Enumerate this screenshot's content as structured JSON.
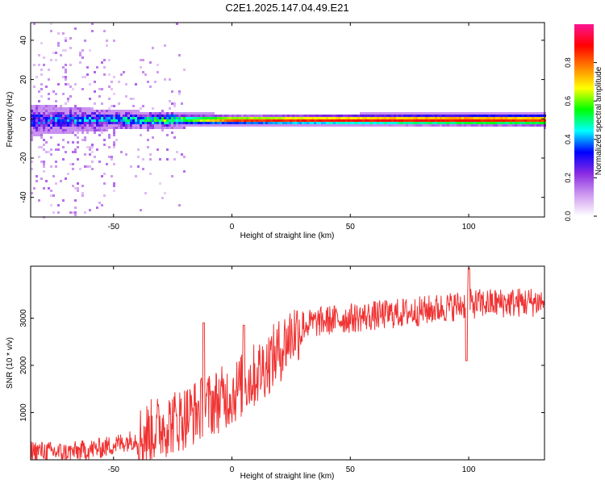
{
  "title": "C2E1.2025.147.04.49.E21",
  "chart_data": [
    {
      "type": "heatmap",
      "xlabel": "Height of straight line (km)",
      "ylabel": "Frequency (Hz)",
      "xlim": [
        -85,
        132
      ],
      "ylim": [
        -50,
        49
      ],
      "xticks": [
        -50,
        0,
        50,
        100
      ],
      "yticks": [
        -40,
        -20,
        0,
        20,
        40
      ],
      "colorbar": {
        "label": "Normalized spectral amplitude",
        "range": [
          0,
          1
        ],
        "ticks": [
          0,
          0.2,
          0.4,
          0.6,
          0.8
        ],
        "tick_labels": [
          "0.0",
          "0.2",
          "0.4",
          "0.6",
          "0.8"
        ],
        "colors": [
          "#ffffff",
          "#cf9bf0",
          "#8a2be2",
          "#0000ff",
          "#00ffff",
          "#00ff00",
          "#ffff00",
          "#ff8000",
          "#ff0000",
          "#ff1493"
        ]
      },
      "band_center_hz": 0,
      "band_halfwidth_hz": [
        {
          "x": -85,
          "value": 8
        },
        {
          "x": -50,
          "value": 5
        },
        {
          "x": -20,
          "value": 4
        },
        {
          "x": 0,
          "value": 3
        },
        {
          "x": 132,
          "value": 4
        }
      ],
      "peak_amplitude": [
        {
          "x": -85,
          "value": 0.25
        },
        {
          "x": -50,
          "value": 0.35
        },
        {
          "x": -20,
          "value": 0.55
        },
        {
          "x": 0,
          "value": 0.85
        },
        {
          "x": 50,
          "value": 0.9
        },
        {
          "x": 100,
          "value": 0.9
        },
        {
          "x": 132,
          "value": 0.85
        }
      ]
    },
    {
      "type": "line",
      "xlabel": "Height of straight line (km)",
      "ylabel": "SNR (10 * v/v)",
      "xlim": [
        -85,
        132
      ],
      "ylim": [
        0,
        4100
      ],
      "xticks": [
        -50,
        0,
        50,
        100
      ],
      "yticks": [
        1000,
        2000,
        3000
      ],
      "color": "#f03232",
      "mean_curve": [
        {
          "x": -85,
          "value": 200
        },
        {
          "x": -70,
          "value": 150
        },
        {
          "x": -55,
          "value": 250
        },
        {
          "x": -40,
          "value": 450
        },
        {
          "x": -30,
          "value": 700
        },
        {
          "x": -20,
          "value": 900
        },
        {
          "x": -10,
          "value": 1150
        },
        {
          "x": 0,
          "value": 1400
        },
        {
          "x": 10,
          "value": 1800
        },
        {
          "x": 20,
          "value": 2300
        },
        {
          "x": 25,
          "value": 2650
        },
        {
          "x": 30,
          "value": 2850
        },
        {
          "x": 40,
          "value": 2950
        },
        {
          "x": 60,
          "value": 3050
        },
        {
          "x": 80,
          "value": 3150
        },
        {
          "x": 100,
          "value": 3300
        },
        {
          "x": 132,
          "value": 3350
        }
      ],
      "spikes": [
        {
          "x": -12,
          "value": 2900
        },
        {
          "x": 5,
          "value": 2850
        },
        {
          "x": 100,
          "value": 4050
        },
        {
          "x": 99,
          "value": 2100
        }
      ]
    }
  ]
}
